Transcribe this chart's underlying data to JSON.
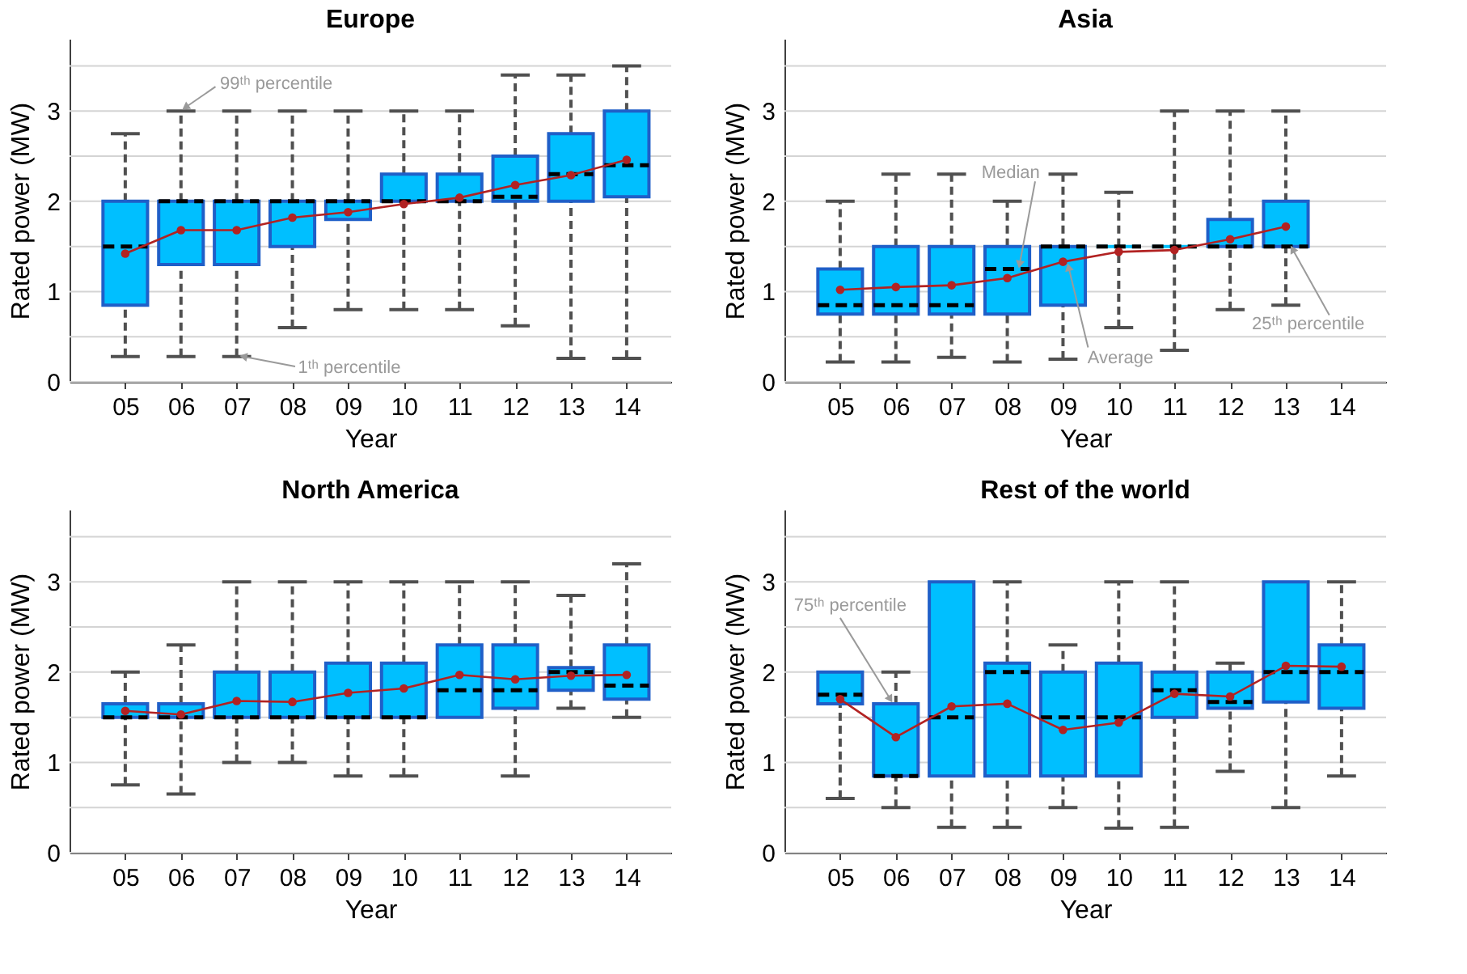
{
  "chart_data": [
    {
      "type": "box",
      "title": "Europe",
      "xlabel": "Year",
      "ylabel": "Rated power (MW)",
      "categories": [
        "05",
        "06",
        "07",
        "08",
        "09",
        "10",
        "11",
        "12",
        "13",
        "14"
      ],
      "ylim": [
        0,
        3.8
      ],
      "yticks": [
        0,
        {
          "value": 0.5,
          "label": null
        },
        1,
        {
          "value": 1.5,
          "label": null
        },
        2,
        {
          "value": 2.5,
          "label": null
        },
        3,
        {
          "value": 3.5,
          "label": null
        }
      ],
      "grid": "y",
      "marker": "circle",
      "series": [
        {
          "color": "#00bfff",
          "boxes": [
            {
              "low": 0.28,
              "q1": 0.85,
              "median": 1.5,
              "q3": 2.0,
              "high": 2.75
            },
            {
              "low": 0.28,
              "q1": 1.3,
              "median": 2.0,
              "q3": 2.0,
              "high": 3.0
            },
            {
              "low": 0.28,
              "q1": 1.3,
              "median": 2.0,
              "q3": 2.0,
              "high": 3.0
            },
            {
              "low": 0.6,
              "q1": 1.5,
              "median": 2.0,
              "q3": 2.0,
              "high": 3.0
            },
            {
              "low": 0.8,
              "q1": 1.8,
              "median": 2.0,
              "q3": 2.0,
              "high": 3.0
            },
            {
              "low": 0.8,
              "q1": 2.0,
              "median": 2.0,
              "q3": 2.3,
              "high": 3.0
            },
            {
              "low": 0.8,
              "q1": 2.0,
              "median": 2.0,
              "q3": 2.3,
              "high": 3.0
            },
            {
              "low": 0.62,
              "q1": 2.0,
              "median": 2.05,
              "q3": 2.5,
              "high": 3.4
            },
            {
              "low": 0.26,
              "q1": 2.0,
              "median": 2.3,
              "q3": 2.75,
              "high": 3.4
            },
            {
              "low": 0.26,
              "q1": 2.05,
              "median": 2.4,
              "q3": 3.0,
              "high": 3.5
            }
          ]
        },
        {
          "type": "line",
          "color": "#b22222",
          "values": [
            1.42,
            1.68,
            1.68,
            1.82,
            1.88,
            1.97,
            2.04,
            2.18,
            2.29,
            2.46
          ]
        }
      ],
      "annotations": [
        {
          "text": "99ᵗʰ percentile",
          "x": "06",
          "y": 3.0
        },
        {
          "text": "1ᵗʰ percentile",
          "x": "07",
          "y": 0.28
        }
      ]
    },
    {
      "type": "box",
      "title": "Asia",
      "xlabel": "Year",
      "ylabel": "Rated power (MW)",
      "categories": [
        "05",
        "06",
        "07",
        "08",
        "09",
        "10",
        "11",
        "12",
        "13",
        "14"
      ],
      "ylim": [
        0,
        3.8
      ],
      "yticks": [
        0,
        {
          "value": 0.5,
          "label": null
        },
        1,
        {
          "value": 1.5,
          "label": null
        },
        2,
        {
          "value": 2.5,
          "label": null
        },
        3,
        {
          "value": 3.5,
          "label": null
        }
      ],
      "grid": "y",
      "marker": "circle",
      "series": [
        {
          "color": "#00bfff",
          "boxes": [
            {
              "low": 0.22,
              "q1": 0.75,
              "median": 0.85,
              "q3": 1.25,
              "high": 2.0
            },
            {
              "low": 0.22,
              "q1": 0.75,
              "median": 0.85,
              "q3": 1.5,
              "high": 2.3
            },
            {
              "low": 0.27,
              "q1": 0.75,
              "median": 0.85,
              "q3": 1.5,
              "high": 2.3
            },
            {
              "low": 0.22,
              "q1": 0.75,
              "median": 1.25,
              "q3": 1.5,
              "high": 2.0
            },
            {
              "low": 0.25,
              "q1": 0.85,
              "median": 1.5,
              "q3": 1.5,
              "high": 2.3
            },
            {
              "low": 0.6,
              "q1": 1.5,
              "median": 1.5,
              "q3": 1.5,
              "high": 2.1
            },
            {
              "low": 0.35,
              "q1": 1.5,
              "median": 1.5,
              "q3": 1.5,
              "high": 3.0
            },
            {
              "low": 0.8,
              "q1": 1.5,
              "median": 1.5,
              "q3": 1.8,
              "high": 3.0
            },
            {
              "low": 0.85,
              "q1": 1.5,
              "median": 1.5,
              "q3": 2.0,
              "high": 3.0
            },
            null
          ]
        },
        {
          "type": "line",
          "color": "#b22222",
          "values": [
            1.02,
            1.05,
            1.07,
            1.15,
            1.33,
            1.44,
            1.46,
            1.58,
            1.72,
            null
          ]
        }
      ],
      "annotations": [
        {
          "text": "Median",
          "x": "08",
          "y": 1.25
        },
        {
          "text": "Average",
          "x": "09",
          "y": 1.33
        },
        {
          "text": "25ᵗʰ percentile",
          "x": "13",
          "y": 1.5
        }
      ]
    },
    {
      "type": "box",
      "title": "North America",
      "xlabel": "Year",
      "ylabel": "Rated power (MW)",
      "categories": [
        "05",
        "06",
        "07",
        "08",
        "09",
        "10",
        "11",
        "12",
        "13",
        "14"
      ],
      "ylim": [
        0,
        3.8
      ],
      "yticks": [
        0,
        {
          "value": 0.5,
          "label": null
        },
        1,
        {
          "value": 1.5,
          "label": null
        },
        2,
        {
          "value": 2.5,
          "label": null
        },
        3,
        {
          "value": 3.5,
          "label": null
        }
      ],
      "grid": "y",
      "marker": "circle",
      "series": [
        {
          "color": "#00bfff",
          "boxes": [
            {
              "low": 0.75,
              "q1": 1.5,
              "median": 1.5,
              "q3": 1.65,
              "high": 2.0
            },
            {
              "low": 0.65,
              "q1": 1.5,
              "median": 1.5,
              "q3": 1.65,
              "high": 2.3
            },
            {
              "low": 1.0,
              "q1": 1.5,
              "median": 1.5,
              "q3": 2.0,
              "high": 3.0
            },
            {
              "low": 1.0,
              "q1": 1.5,
              "median": 1.5,
              "q3": 2.0,
              "high": 3.0
            },
            {
              "low": 0.85,
              "q1": 1.5,
              "median": 1.5,
              "q3": 2.1,
              "high": 3.0
            },
            {
              "low": 0.85,
              "q1": 1.5,
              "median": 1.5,
              "q3": 2.1,
              "high": 3.0
            },
            {
              "low": 1.5,
              "q1": 1.5,
              "median": 1.8,
              "q3": 2.3,
              "high": 3.0
            },
            {
              "low": 0.85,
              "q1": 1.6,
              "median": 1.8,
              "q3": 2.3,
              "high": 3.0
            },
            {
              "low": 1.6,
              "q1": 1.8,
              "median": 2.0,
              "q3": 2.05,
              "high": 2.85
            },
            {
              "low": 1.5,
              "q1": 1.7,
              "median": 1.85,
              "q3": 2.3,
              "high": 3.2
            }
          ]
        },
        {
          "type": "line",
          "color": "#b22222",
          "values": [
            1.57,
            1.53,
            1.68,
            1.67,
            1.77,
            1.82,
            1.97,
            1.92,
            1.96,
            1.97
          ]
        }
      ]
    },
    {
      "type": "box",
      "title": "Rest of the world",
      "xlabel": "Year",
      "ylabel": "Rated power (MW)",
      "categories": [
        "05",
        "06",
        "07",
        "08",
        "09",
        "10",
        "11",
        "12",
        "13",
        "14"
      ],
      "ylim": [
        0,
        3.8
      ],
      "yticks": [
        0,
        {
          "value": 0.5,
          "label": null
        },
        1,
        {
          "value": 1.5,
          "label": null
        },
        2,
        {
          "value": 2.5,
          "label": null
        },
        3,
        {
          "value": 3.5,
          "label": null
        }
      ],
      "grid": "y",
      "marker": "circle",
      "series": [
        {
          "color": "#00bfff",
          "boxes": [
            {
              "low": 0.6,
              "q1": 1.65,
              "median": 1.75,
              "q3": 2.0,
              "high": 2.0
            },
            {
              "low": 0.5,
              "q1": 0.85,
              "median": 0.85,
              "q3": 1.65,
              "high": 2.0
            },
            {
              "low": 0.28,
              "q1": 0.85,
              "median": 1.5,
              "q3": 3.0,
              "high": 3.0
            },
            {
              "low": 0.28,
              "q1": 0.85,
              "median": 2.0,
              "q3": 2.1,
              "high": 3.0
            },
            {
              "low": 0.5,
              "q1": 0.85,
              "median": 1.5,
              "q3": 2.0,
              "high": 2.3
            },
            {
              "low": 0.27,
              "q1": 0.85,
              "median": 1.5,
              "q3": 2.1,
              "high": 3.0
            },
            {
              "low": 0.28,
              "q1": 1.5,
              "median": 1.8,
              "q3": 2.0,
              "high": 3.0
            },
            {
              "low": 0.9,
              "q1": 1.6,
              "median": 1.67,
              "q3": 2.0,
              "high": 2.1
            },
            {
              "low": 0.5,
              "q1": 1.67,
              "median": 2.0,
              "q3": 3.0,
              "high": 3.0
            },
            {
              "low": 0.85,
              "q1": 1.6,
              "median": 2.0,
              "q3": 2.3,
              "high": 3.0
            }
          ]
        },
        {
          "type": "line",
          "color": "#b22222",
          "values": [
            1.7,
            1.28,
            1.62,
            1.65,
            1.36,
            1.44,
            1.76,
            1.73,
            2.07,
            2.06
          ]
        }
      ],
      "annotations": [
        {
          "text": "75ᵗʰ percentile",
          "x": "06",
          "y": 1.65
        }
      ]
    }
  ]
}
